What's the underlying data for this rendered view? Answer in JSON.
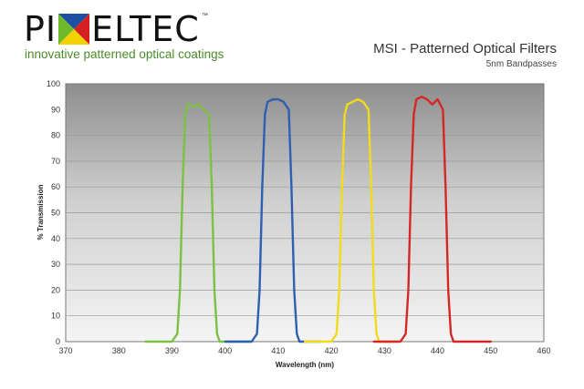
{
  "logo": {
    "word_left": "PI",
    "word_right": "ELTEC",
    "tm": "™",
    "tagline": "innovative patterned optical coatings",
    "x_colors": [
      "#1f4fa0",
      "#d42020",
      "#f2d200",
      "#6fb92d"
    ]
  },
  "chart_data": {
    "type": "line",
    "title": "MSI - Patterned Optical Filters",
    "subtitle": "5nm Bandpasses",
    "xlabel": "Wavelength (nm)",
    "ylabel": "% Transmission",
    "xlim": [
      370,
      460
    ],
    "ylim": [
      0,
      100
    ],
    "xticks": [
      370,
      380,
      390,
      400,
      410,
      420,
      430,
      440,
      450,
      460
    ],
    "yticks": [
      0,
      10,
      20,
      30,
      40,
      50,
      60,
      70,
      80,
      90,
      100
    ],
    "grid": true,
    "legend": "none",
    "series": [
      {
        "color": "#7cc142",
        "x": [
          385,
          390,
          391,
          391.5,
          392,
          392.5,
          393,
          394,
          395,
          396,
          397,
          397.5,
          398,
          398.5,
          399,
          400,
          405
        ],
        "y": [
          0,
          0,
          3,
          20,
          60,
          88,
          92,
          91,
          92,
          90,
          88,
          60,
          20,
          3,
          0,
          0,
          0
        ]
      },
      {
        "color": "#2e5fb0",
        "x": [
          400,
          405,
          406,
          406.5,
          407,
          407.5,
          408,
          409,
          410,
          411,
          412,
          412.5,
          413,
          413.5,
          414,
          415,
          418
        ],
        "y": [
          0,
          0,
          3,
          20,
          60,
          88,
          93,
          94,
          94,
          93,
          90,
          60,
          20,
          3,
          0,
          0,
          0
        ]
      },
      {
        "color": "#f2dc1a",
        "x": [
          415,
          420,
          421,
          421.5,
          422,
          422.5,
          423,
          424,
          425,
          426,
          427,
          427.5,
          428,
          428.5,
          429,
          430,
          432
        ],
        "y": [
          0,
          0,
          3,
          20,
          60,
          88,
          92,
          93,
          94,
          93,
          90,
          60,
          20,
          3,
          0,
          0,
          0
        ]
      },
      {
        "color": "#d42828",
        "x": [
          428,
          433,
          434,
          434.5,
          435,
          435.5,
          436,
          437,
          438,
          439,
          440,
          441,
          441.5,
          442,
          442.5,
          443,
          444,
          450
        ],
        "y": [
          0,
          0,
          3,
          20,
          60,
          88,
          94,
          95,
          94,
          92,
          94,
          90,
          60,
          20,
          3,
          0,
          0,
          0
        ]
      }
    ]
  }
}
